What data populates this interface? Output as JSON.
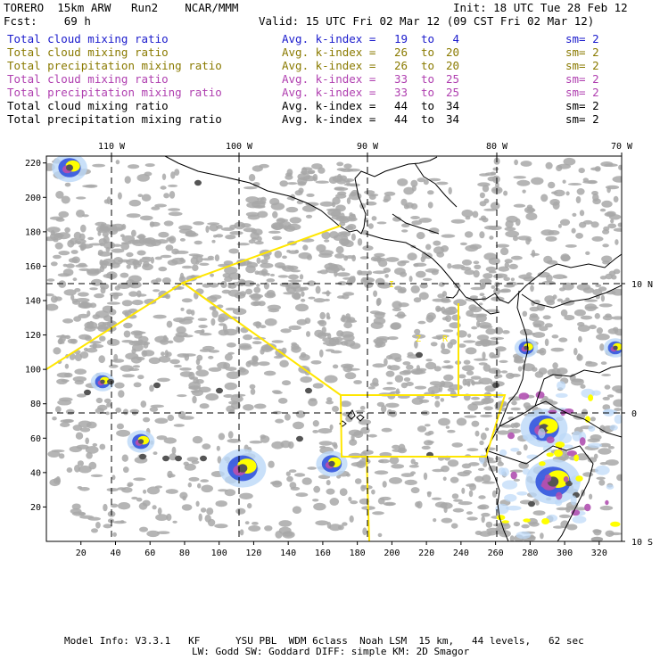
{
  "header": {
    "model": "TORERO",
    "resolution": "15km ARW",
    "run": "Run2",
    "org": "NCAR/MMM",
    "init": "Init: 18 UTC Tue 28 Feb 12",
    "fcst_label": "Fcst:",
    "fcst_value": "69 h",
    "valid": "Valid: 15 UTC Fri 02 Mar 12 (09 CST Fri 02 Mar 12)"
  },
  "legend": [
    {
      "field": "Total cloud mixing ratio",
      "kindex": "Avg. k-index =",
      "from": "19",
      "to_word": "to",
      "to": "4",
      "sm": "sm= 2",
      "color": "#1a1acc"
    },
    {
      "field": "Total cloud mixing ratio",
      "kindex": "Avg. k-index =",
      "from": "26",
      "to_word": "to",
      "to": "20",
      "sm": "sm= 2",
      "color": "#8a7a00"
    },
    {
      "field": "Total precipitation mixing ratio",
      "kindex": "Avg. k-index =",
      "from": "26",
      "to_word": "to",
      "to": "20",
      "sm": "sm= 2",
      "color": "#8a7a00"
    },
    {
      "field": "Total cloud mixing ratio",
      "kindex": "Avg. k-index =",
      "from": "33",
      "to_word": "to",
      "to": "25",
      "sm": "sm= 2",
      "color": "#b040b0"
    },
    {
      "field": "Total precipitation mixing ratio",
      "kindex": "Avg. k-index =",
      "from": "33",
      "to_word": "to",
      "to": "25",
      "sm": "sm= 2",
      "color": "#b040b0"
    },
    {
      "field": "Total cloud mixing ratio",
      "kindex": "Avg. k-index =",
      "from": "44",
      "to_word": "to",
      "to": "34",
      "sm": "sm= 2",
      "color": "#000000"
    },
    {
      "field": "Total precipitation mixing ratio",
      "kindex": "Avg. k-index =",
      "from": "44",
      "to_word": "to",
      "to": "34",
      "sm": "sm= 2",
      "color": "#000000"
    }
  ],
  "map": {
    "lon_labels": [
      "110 W",
      "100 W",
      "90 W",
      "80 W",
      "70 W"
    ],
    "lat_labels": [
      "10 N",
      "0",
      "10 S"
    ],
    "y_ticks": [
      "220",
      "200",
      "180",
      "160",
      "140",
      "120",
      "100",
      "80",
      "60",
      "40",
      "20"
    ],
    "x_ticks": [
      "20",
      "40",
      "60",
      "80",
      "100",
      "120",
      "140",
      "160",
      "180",
      "200",
      "220",
      "240",
      "260",
      "280",
      "300",
      "320"
    ],
    "fir_labels": [
      "I",
      "Z",
      "R"
    ],
    "colors": {
      "grey": "#a8a8a8",
      "dark": "#555555",
      "yellow": "#ffff00",
      "blue": "#3355dd",
      "lightblue": "#bcd8f8",
      "magenta": "#b050b0",
      "fir": "#ffe600"
    }
  },
  "footer": {
    "line1": "Model Info: V3.3.1   KF      YSU PBL  WDM 6class  Noah LSM  15 km,   44 levels,   62 sec",
    "line2": "LW: Godd SW: Goddard DIFF: simple KM: 2D Smagor"
  }
}
